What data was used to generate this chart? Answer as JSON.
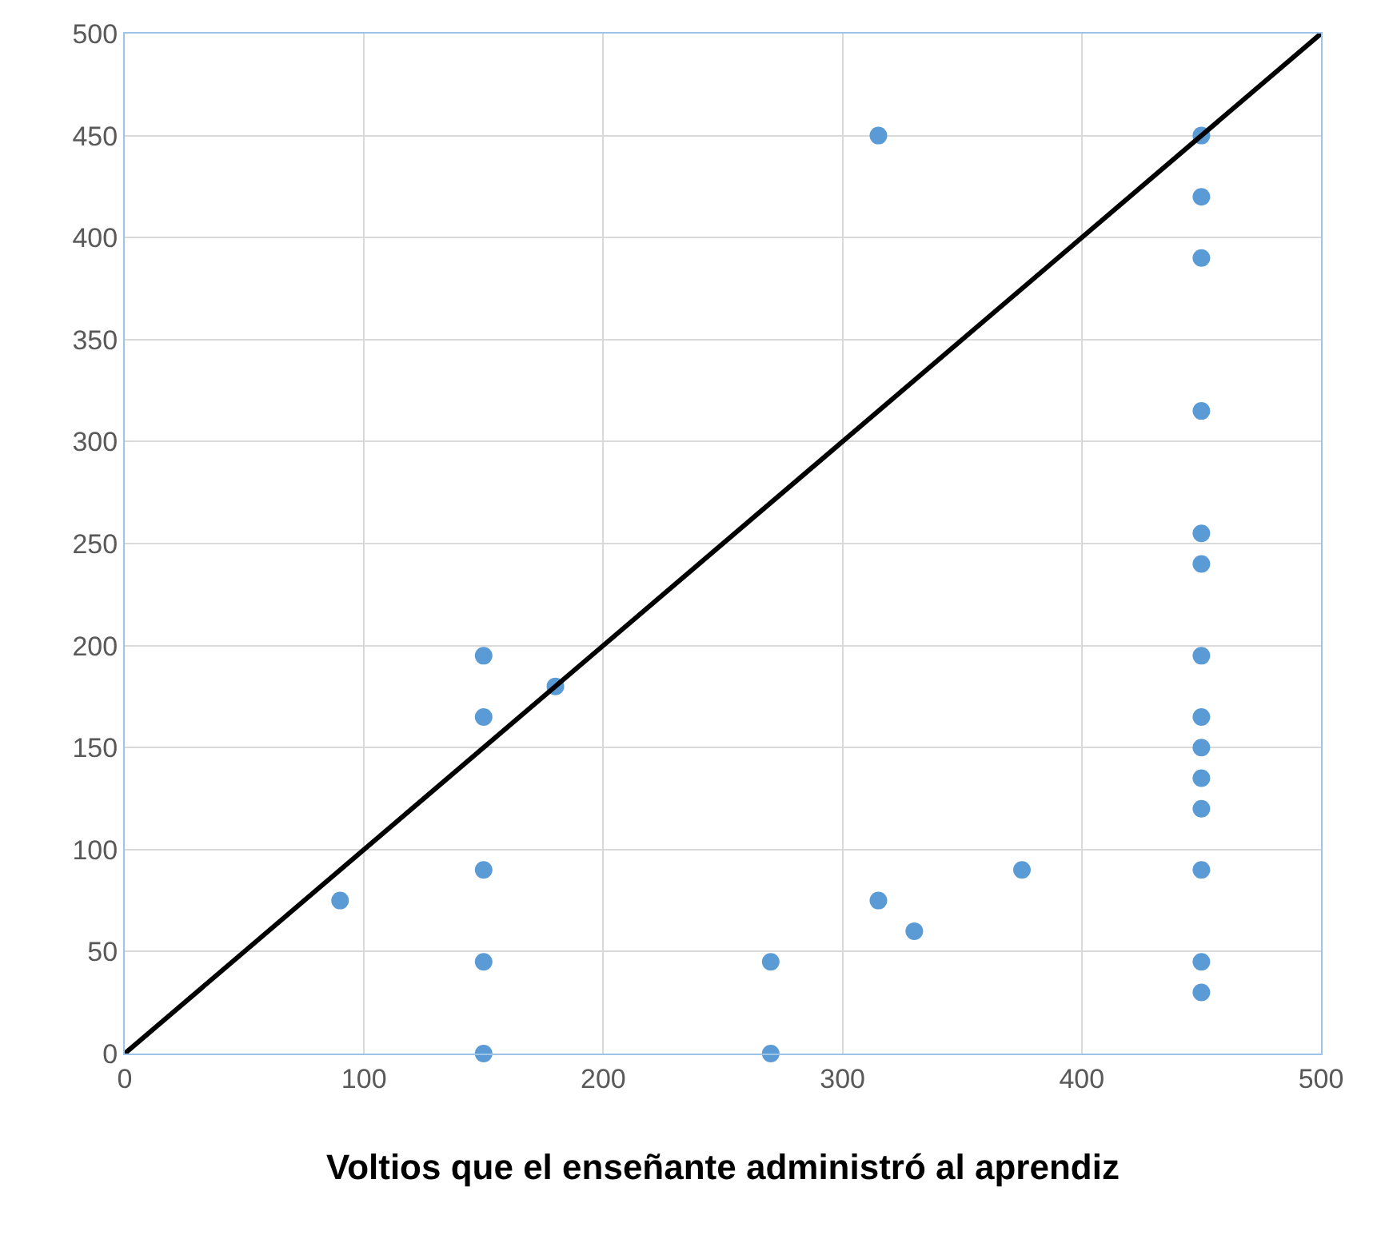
{
  "chart_data": {
    "type": "scatter",
    "xlabel": "Voltios que el enseñante administró al aprendiz",
    "xlim": [
      0,
      500
    ],
    "xticks": [
      0,
      100,
      200,
      300,
      400,
      500
    ],
    "ylim": [
      0,
      500
    ],
    "yticks": [
      0,
      50,
      100,
      150,
      200,
      250,
      300,
      350,
      400,
      450,
      500
    ],
    "grid": true,
    "series": [
      {
        "marker": "circle",
        "color": "#5b9bd5",
        "x": [
          90,
          150,
          150,
          150,
          150,
          150,
          180,
          270,
          270,
          315,
          315,
          330,
          375,
          450,
          450,
          450,
          450,
          450,
          450,
          450,
          450,
          450,
          450,
          450,
          450,
          450,
          450
        ],
        "values": [
          75,
          195,
          165,
          90,
          45,
          0,
          180,
          45,
          0,
          450,
          75,
          60,
          90,
          450,
          420,
          390,
          315,
          255,
          240,
          195,
          165,
          150,
          135,
          120,
          90,
          45,
          30
        ]
      },
      {
        "type": "line",
        "marker": "none",
        "color": "#000000",
        "x": [
          0,
          500
        ],
        "values": [
          0,
          500
        ]
      }
    ]
  }
}
